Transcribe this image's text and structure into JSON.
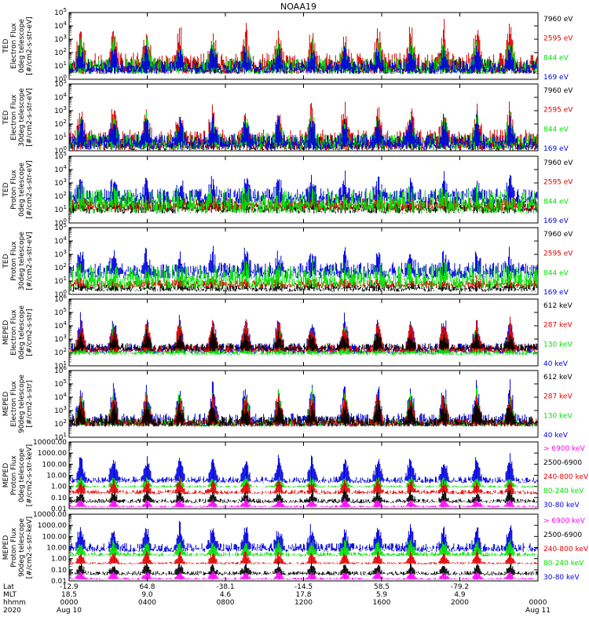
{
  "title": "NOAA19",
  "colors": {
    "black": "#000000",
    "red": "#e00000",
    "green": "#00e000",
    "blue": "#0000e0",
    "magenta": "#ff00ff"
  },
  "chart_data": [
    {
      "type": "line",
      "title": "TED Electron Flux 0deg telescope",
      "ylabel_lines": [
        "TED",
        "Electron Flux",
        "0deg telescope",
        "[#/cm2-s-str-eV]"
      ],
      "ytick_labels": [
        "10^0",
        "10^1",
        "10^2",
        "10^3",
        "10^4",
        "10^5"
      ],
      "ylim_log10": [
        0,
        5
      ],
      "legend": [
        {
          "label": "7960 eV",
          "color": "black"
        },
        {
          "label": "2595 eV",
          "color": "red"
        },
        {
          "label": "844 eV",
          "color": "green"
        },
        {
          "label": "169 eV",
          "color": "blue"
        }
      ],
      "series": [
        {
          "name": "7960 eV",
          "base": 1.0,
          "spread": 0.6,
          "peak": 1.8
        },
        {
          "name": "2595 eV",
          "base": 1.2,
          "spread": 0.8,
          "peak": 2.8
        },
        {
          "name": "844 eV",
          "base": 1.0,
          "spread": 0.6,
          "peak": 2.2
        },
        {
          "name": "169 eV",
          "base": 0.9,
          "spread": 0.5,
          "peak": 1.8
        }
      ]
    },
    {
      "type": "line",
      "title": "TED Electron Flux 30deg telescope",
      "ylabel_lines": [
        "TED",
        "Electron Flux",
        "30deg telescope",
        "[#/cm2-s-str-eV]"
      ],
      "ytick_labels": [
        "10^0",
        "10^1",
        "10^2",
        "10^3",
        "10^4",
        "10^5"
      ],
      "ylim_log10": [
        0,
        5
      ],
      "legend": [
        {
          "label": "7960 eV",
          "color": "black"
        },
        {
          "label": "2595 eV",
          "color": "red"
        },
        {
          "label": "844 eV",
          "color": "green"
        },
        {
          "label": "169 eV",
          "color": "blue"
        }
      ],
      "series": [
        {
          "name": "7960 eV",
          "base": 0.6,
          "spread": 0.6,
          "peak": 1.8
        },
        {
          "name": "2595 eV",
          "base": 0.8,
          "spread": 0.8,
          "peak": 2.6
        },
        {
          "name": "844 eV",
          "base": 0.7,
          "spread": 0.6,
          "peak": 2.0
        },
        {
          "name": "169 eV",
          "base": 0.7,
          "spread": 0.6,
          "peak": 2.0
        }
      ]
    },
    {
      "type": "line",
      "title": "TED Proton Flux 0deg telescope",
      "ylabel_lines": [
        "TED",
        "Proton Flux",
        "0deg telescope",
        "[#/cm2-s-str-eV]"
      ],
      "ytick_labels": [
        "10^0",
        "10^1",
        "10^2",
        "10^3",
        "10^4",
        "10^5"
      ],
      "ylim_log10": [
        0,
        5
      ],
      "legend": [
        {
          "label": "7960 eV",
          "color": "black"
        },
        {
          "label": "2595 eV",
          "color": "red"
        },
        {
          "label": "844 eV",
          "color": "green"
        },
        {
          "label": "169 eV",
          "color": "blue"
        }
      ],
      "series": [
        {
          "name": "7960 eV",
          "base": 1.2,
          "spread": 0.5,
          "peak": 0.8
        },
        {
          "name": "2595 eV",
          "base": 1.4,
          "spread": 0.5,
          "peak": 0.8
        },
        {
          "name": "169 eV",
          "base": 2.0,
          "spread": 0.6,
          "peak": 1.5
        },
        {
          "name": "844 eV",
          "base": 1.6,
          "spread": 0.9,
          "peak": 0.6
        }
      ]
    },
    {
      "type": "line",
      "title": "TED Proton Flux 30deg telescope",
      "ylabel_lines": [
        "TED",
        "Proton Flux",
        "30deg telescope",
        "[#/cm2-s-str-eV]"
      ],
      "ytick_labels": [
        "10^0",
        "10^1",
        "10^2",
        "10^3",
        "10^4",
        "10^5"
      ],
      "ylim_log10": [
        0,
        5
      ],
      "legend": [
        {
          "label": "7960 eV",
          "color": "black"
        },
        {
          "label": "2595 eV",
          "color": "red"
        },
        {
          "label": "844 eV",
          "color": "green"
        },
        {
          "label": "169 eV",
          "color": "blue"
        }
      ],
      "series": [
        {
          "name": "7960 eV",
          "base": 0.5,
          "spread": 0.3,
          "peak": 0.4
        },
        {
          "name": "2595 eV",
          "base": 0.8,
          "spread": 0.3,
          "peak": 0.4
        },
        {
          "name": "169 eV",
          "base": 1.8,
          "spread": 0.6,
          "peak": 1.5
        },
        {
          "name": "844 eV",
          "base": 1.3,
          "spread": 0.9,
          "peak": 0.6
        }
      ]
    },
    {
      "type": "line",
      "title": "MEPED Electron Flux 0deg telescope",
      "ylabel_lines": [
        "MEPED",
        "Electron Flux",
        "0deg telescope",
        "[#/cm2-s-str]"
      ],
      "ytick_labels": [
        "10^1",
        "10^2",
        "10^3",
        "10^4",
        "10^5",
        "10^6"
      ],
      "ylim_log10": [
        1,
        6
      ],
      "legend": [
        {
          "label": "612 keV",
          "color": "black"
        },
        {
          "label": "287 keV",
          "color": "red"
        },
        {
          "label": "130 keV",
          "color": "green"
        },
        {
          "label": "40 keV",
          "color": "blue"
        }
      ],
      "series": [
        {
          "name": "40 keV",
          "base": 2.3,
          "spread": 0.4,
          "peak": 2.7
        },
        {
          "name": "130 keV",
          "base": 2.0,
          "spread": 0.2,
          "peak": 2.5
        },
        {
          "name": "287 keV",
          "base": 2.3,
          "spread": 0.3,
          "peak": 2.4
        },
        {
          "name": "612 keV",
          "base": 2.4,
          "spread": 0.3,
          "peak": 1.2
        }
      ]
    },
    {
      "type": "line",
      "title": "MEPED Electron Flux 90deg telescope",
      "ylabel_lines": [
        "MEPED",
        "Electron Flux",
        "90deg telescope",
        "[#/cm2-s-str]"
      ],
      "ytick_labels": [
        "10^1",
        "10^2",
        "10^3",
        "10^4",
        "10^5",
        "10^6"
      ],
      "ylim_log10": [
        1,
        6
      ],
      "legend": [
        {
          "label": "612 keV",
          "color": "black"
        },
        {
          "label": "287 keV",
          "color": "red"
        },
        {
          "label": "130 keV",
          "color": "green"
        },
        {
          "label": "40 keV",
          "color": "blue"
        }
      ],
      "series": [
        {
          "name": "40 keV",
          "base": 2.3,
          "spread": 0.5,
          "peak": 3.0
        },
        {
          "name": "130 keV",
          "base": 2.1,
          "spread": 0.3,
          "peak": 2.8
        },
        {
          "name": "287 keV",
          "base": 2.1,
          "spread": 0.3,
          "peak": 2.4
        },
        {
          "name": "612 keV",
          "base": 2.2,
          "spread": 0.4,
          "peak": 1.6
        }
      ]
    },
    {
      "type": "line",
      "title": "MEPED Proton Flux 0deg telescope",
      "ylabel_lines": [
        "MEPED",
        "Proton Flux",
        "0deg telescope",
        "[#/cm2-s-str-keV]"
      ],
      "ytick_labels": [
        "0.01",
        "0.10",
        "1.00",
        "10.00",
        "100.00",
        "1000.00",
        "10000.00"
      ],
      "ylim_log10": [
        -2,
        4
      ],
      "legend": [
        {
          "label": "> 6900 keV",
          "color": "magenta"
        },
        {
          "label": "2500-6900",
          "color": "black"
        },
        {
          "label": "240-800 keV",
          "color": "red"
        },
        {
          "label": "80-240 keV",
          "color": "green"
        },
        {
          "label": "30-80 keV",
          "color": "blue"
        }
      ],
      "series": [
        {
          "name": "30-80 keV",
          "base": 0.6,
          "spread": 0.3,
          "peak": 2.5
        },
        {
          "name": "80-240 keV",
          "base": 0.0,
          "spread": 0.1,
          "peak": 1.0
        },
        {
          "name": "240-800 keV",
          "base": -0.5,
          "spread": 0.2,
          "peak": 1.2
        },
        {
          "name": "2500-6900",
          "base": -1.3,
          "spread": 0.2,
          "peak": 1.0
        },
        {
          "name": "> 6900 keV",
          "base": -1.8,
          "spread": 0.1,
          "peak": 0.8
        }
      ]
    },
    {
      "type": "line",
      "title": "MEPED Proton Flux 90deg telescope",
      "ylabel_lines": [
        "MEPED",
        "Proton Flux",
        "90deg telescope",
        "[#/cm2-s-str-keV]"
      ],
      "ytick_labels": [
        "0.01",
        "0.10",
        "1.00",
        "10.00",
        "100.00",
        "1000.00",
        "10000.00"
      ],
      "ylim_log10": [
        -2,
        4
      ],
      "legend": [
        {
          "label": "> 6900 keV",
          "color": "magenta"
        },
        {
          "label": "2500-6900",
          "color": "black"
        },
        {
          "label": "240-800 keV",
          "color": "red"
        },
        {
          "label": "80-240 keV",
          "color": "green"
        },
        {
          "label": "30-80 keV",
          "color": "blue"
        }
      ],
      "series": [
        {
          "name": "30-80 keV",
          "base": 1.0,
          "spread": 0.4,
          "peak": 2.3
        },
        {
          "name": "80-240 keV",
          "base": 0.4,
          "spread": 0.2,
          "peak": 1.5
        },
        {
          "name": "240-800 keV",
          "base": -0.4,
          "spread": 0.1,
          "peak": 1.2
        },
        {
          "name": "2500-6900",
          "base": -1.3,
          "spread": 0.2,
          "peak": 1.0
        },
        {
          "name": "> 6900 keV",
          "base": -1.8,
          "spread": 0.1,
          "peak": 0.8
        }
      ]
    }
  ],
  "xaxis": {
    "row_labels": [
      "Lat",
      "MLT",
      "hhmm",
      "2020"
    ],
    "ticks": [
      {
        "lat": "-12.9",
        "mlt": "18.5",
        "hhmm": "0000",
        "date": "Aug 10"
      },
      {
        "lat": "64.8",
        "mlt": "9.0",
        "hhmm": "0400",
        "date": ""
      },
      {
        "lat": "-38.1",
        "mlt": "4.6",
        "hhmm": "0800",
        "date": ""
      },
      {
        "lat": "-14.5",
        "mlt": "17.8",
        "hhmm": "1200",
        "date": ""
      },
      {
        "lat": "58.5",
        "mlt": "5.9",
        "hhmm": "1600",
        "date": ""
      },
      {
        "lat": "-79.2",
        "mlt": "4.9",
        "hhmm": "2000",
        "date": ""
      },
      {
        "lat": "",
        "mlt": "",
        "hhmm": "0000",
        "date": "Aug 11"
      }
    ]
  }
}
